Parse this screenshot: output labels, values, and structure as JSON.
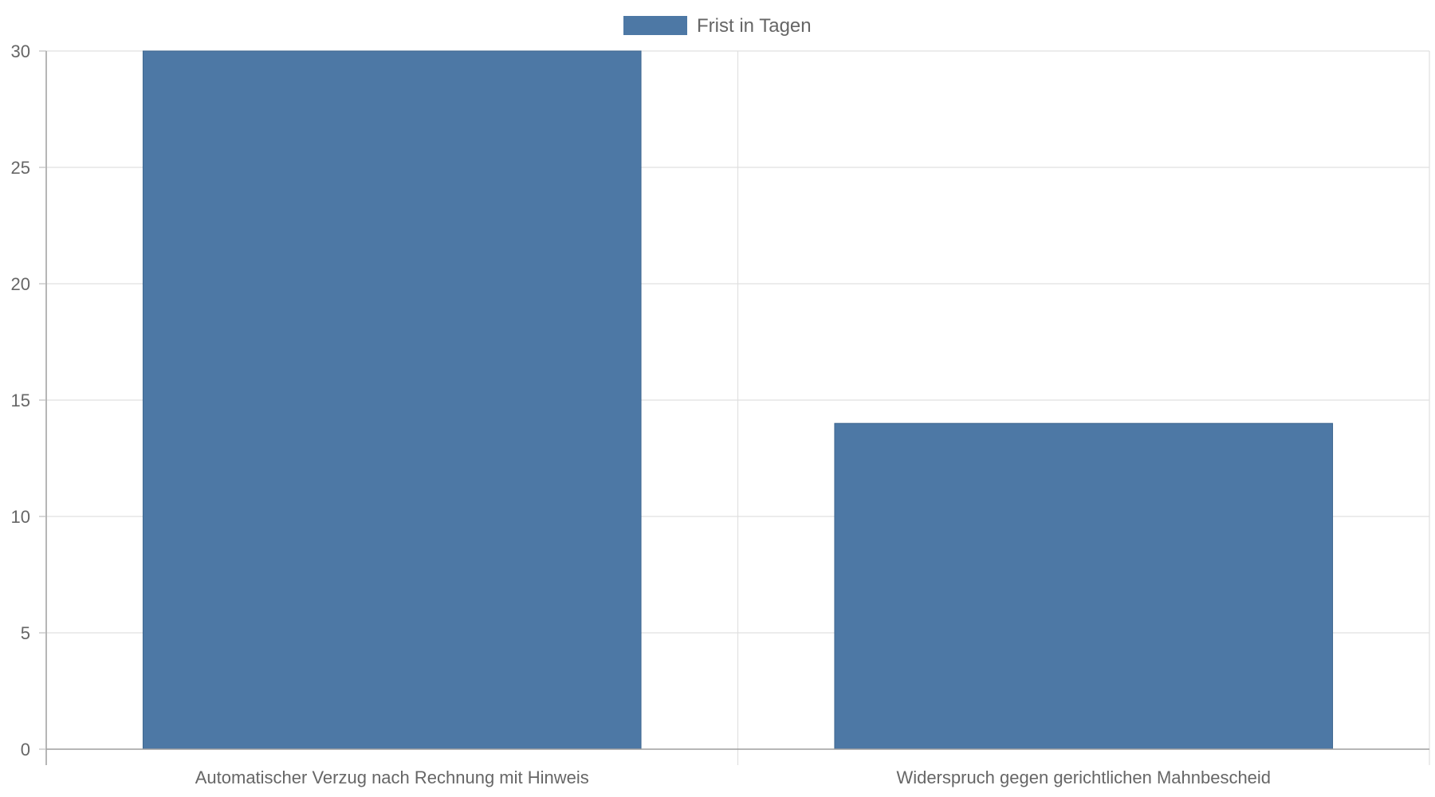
{
  "chart_data": {
    "type": "bar",
    "categories": [
      "Automatischer Verzug nach Rechnung mit Hinweis",
      "Widerspruch gegen gerichtlichen Mahnbescheid"
    ],
    "series": [
      {
        "name": "Frist in Tagen",
        "values": [
          30,
          14
        ],
        "color": "#4d78a5"
      }
    ],
    "ylim": [
      0,
      30
    ],
    "yticks": [
      0,
      5,
      10,
      15,
      20,
      25,
      30
    ],
    "grid": true,
    "legend": "top-center",
    "title": "",
    "xlabel": "",
    "ylabel": ""
  }
}
